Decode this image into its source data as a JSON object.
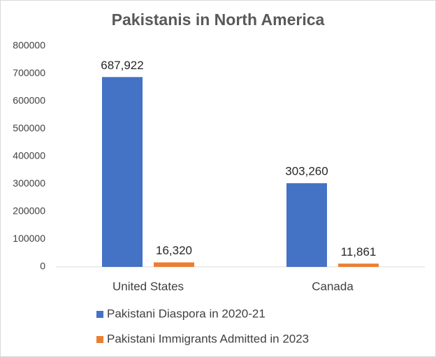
{
  "chart_data": {
    "type": "bar",
    "title": "Pakistanis in North America",
    "categories": [
      "United States",
      "Canada"
    ],
    "series": [
      {
        "name": "Pakistani Diaspora in 2020-21",
        "color": "#4472c4",
        "values": [
          687922,
          303260
        ],
        "value_labels": [
          "687,922",
          "303,260"
        ]
      },
      {
        "name": "Pakistani Immigrants Admitted in 2023",
        "color": "#ed7d31",
        "values": [
          16320,
          11861
        ],
        "value_labels": [
          "16,320",
          "11,861"
        ]
      }
    ],
    "ylim": [
      0,
      800000
    ],
    "yticks": [
      0,
      100000,
      200000,
      300000,
      400000,
      500000,
      600000,
      700000,
      800000
    ],
    "grid": false,
    "legend": "bottom"
  }
}
